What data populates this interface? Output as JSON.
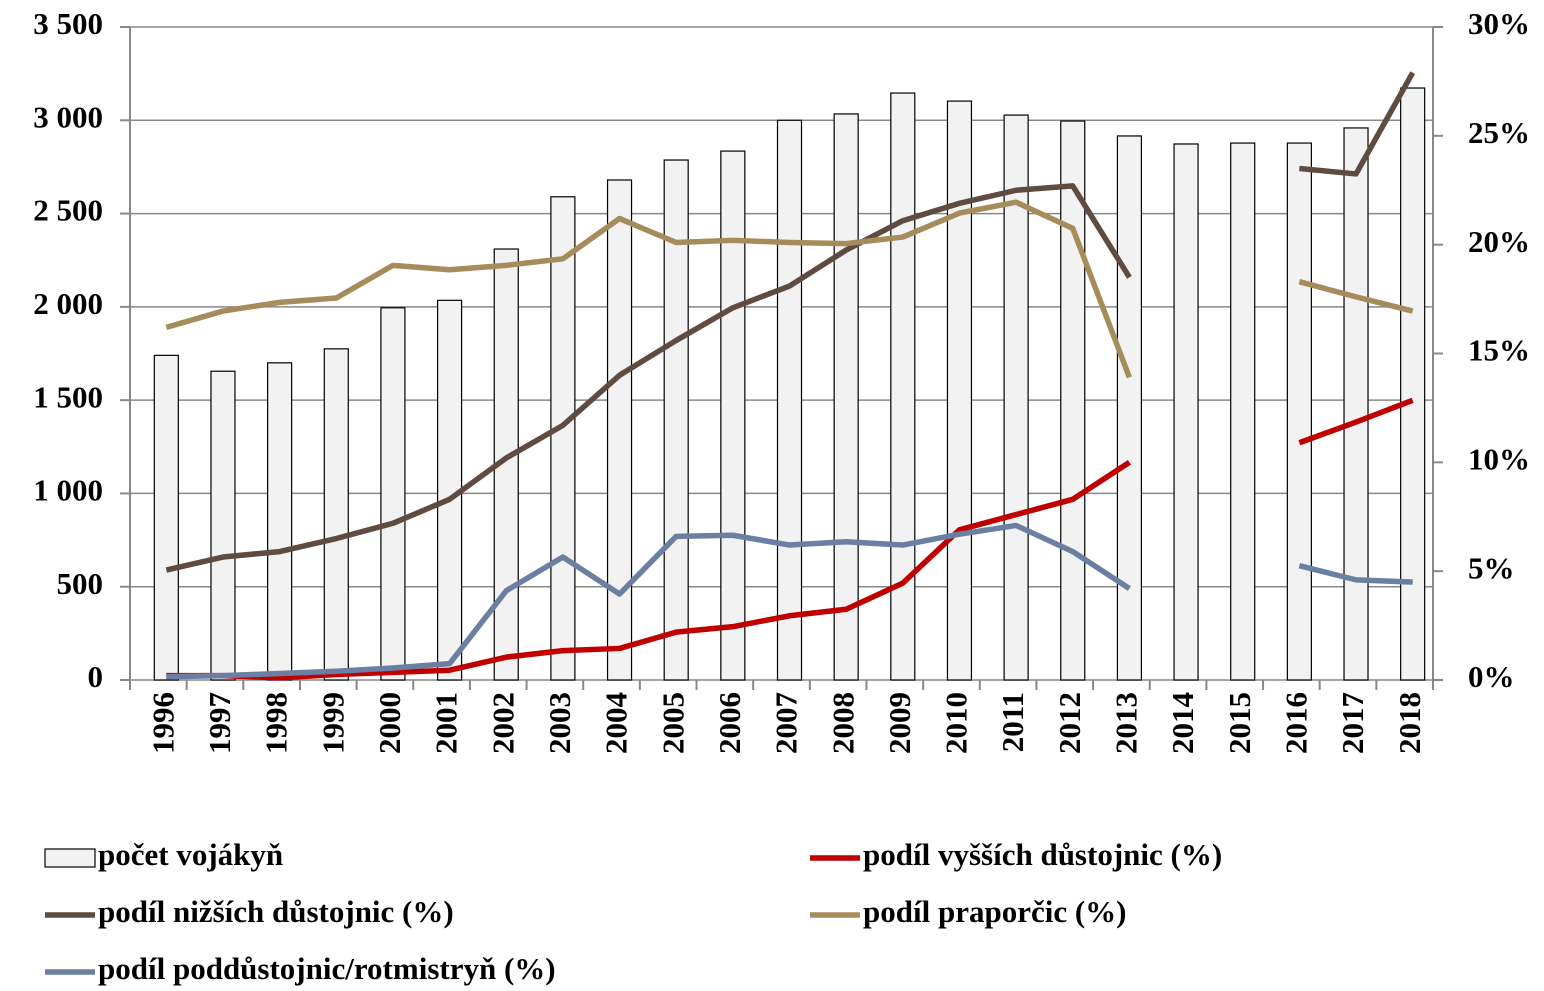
{
  "chart_data": {
    "type": "bar",
    "categories": [
      "1996",
      "1997",
      "1998",
      "1999",
      "2000",
      "2001",
      "2002",
      "2003",
      "2004",
      "2005",
      "2006",
      "2007",
      "2008",
      "2009",
      "2010",
      "2011",
      "2012",
      "2013",
      "2014",
      "2015",
      "2016",
      "2017",
      "2018"
    ],
    "series": [
      {
        "name": "počet vojákyň",
        "type": "bar",
        "color": "#f2f2f2",
        "values": [
          1740,
          1655,
          1700,
          1775,
          1995,
          2035,
          2310,
          2590,
          2680,
          2787,
          2835,
          3000,
          3034,
          3146,
          3103,
          3028,
          2996,
          2916,
          2873,
          2878,
          2878,
          2959,
          3173
        ]
      },
      {
        "name": "podíl vyšších důstojnic (%)",
        "type": "line",
        "axis": "y2",
        "color": "#c00000",
        "values": [
          0.2,
          0.2,
          0.1,
          0.25,
          0.35,
          0.45,
          1.05,
          1.35,
          1.45,
          2.2,
          2.45,
          2.95,
          3.25,
          4.45,
          6.9,
          7.6,
          8.3,
          10.0,
          null,
          null,
          10.9,
          11.85,
          12.85
        ]
      },
      {
        "name": "podíl nižších důstojnic (%)",
        "type": "line",
        "axis": "y2",
        "color": "#5f4b3f",
        "values": [
          5.05,
          5.65,
          5.9,
          6.5,
          7.2,
          8.3,
          10.2,
          11.7,
          14.0,
          15.6,
          17.1,
          18.1,
          19.75,
          21.1,
          21.9,
          22.5,
          22.7,
          18.5,
          null,
          null,
          23.5,
          23.25,
          27.9
        ]
      },
      {
        "name": "podíl praporčic (%)",
        "type": "line",
        "axis": "y2",
        "color": "#a68b5b",
        "values": [
          16.2,
          16.95,
          17.35,
          17.55,
          19.05,
          18.85,
          19.05,
          19.35,
          21.2,
          20.1,
          20.2,
          20.1,
          20.05,
          20.35,
          21.45,
          21.95,
          20.75,
          13.9,
          null,
          null,
          18.3,
          17.6,
          16.95
        ]
      },
      {
        "name": "podíl poddůstojnic/rotmistryň (%)",
        "type": "line",
        "axis": "y2",
        "color": "#6b7fa3",
        "values": [
          0.15,
          0.2,
          0.3,
          0.4,
          0.55,
          0.75,
          4.1,
          5.65,
          3.95,
          6.6,
          6.65,
          6.2,
          6.35,
          6.2,
          6.7,
          7.1,
          5.9,
          4.2,
          null,
          null,
          5.25,
          4.6,
          4.5
        ]
      }
    ],
    "ylim": [
      0,
      3500
    ],
    "yticks": [
      0,
      {
        "value": 500,
        "label": "500"
      },
      {
        "value": 1000,
        "label": "1 000"
      },
      {
        "value": 1500,
        "label": "1 500"
      },
      {
        "value": 2000,
        "label": "2 000"
      },
      {
        "value": 2500,
        "label": "2 500"
      },
      {
        "value": 3000,
        "label": "3 000"
      },
      {
        "value": 3500,
        "label": "3 500"
      }
    ],
    "y2lim": [
      0,
      30
    ],
    "y2ticks": [
      {
        "value": 0,
        "label": "0%"
      },
      {
        "value": 5,
        "label": "5%"
      },
      {
        "value": 10,
        "label": "10%"
      },
      {
        "value": 15,
        "label": "15%"
      },
      {
        "value": 20,
        "label": "20%"
      },
      {
        "value": 25,
        "label": "25%"
      },
      {
        "value": 30,
        "label": "30%"
      }
    ],
    "grid": true,
    "legend": "bottom"
  }
}
